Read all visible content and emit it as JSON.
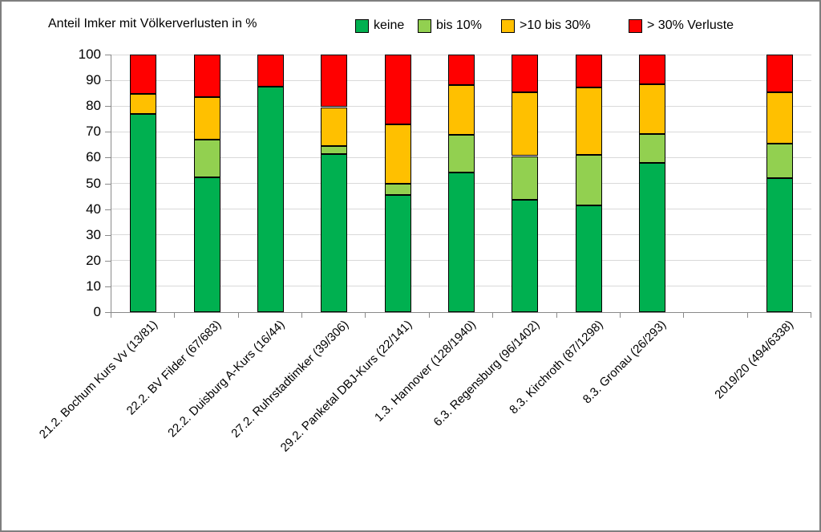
{
  "title": "Anteil Imker mit Völkerverlusten in %",
  "legend": [
    {
      "label": "keine",
      "color": "#00B050"
    },
    {
      "label": "bis 10%",
      "color": "#92D050"
    },
    {
      "label": ">10 bis 30%",
      "color": "#FFC000"
    },
    {
      "label": "> 30% Verluste",
      "color": "#FF0000"
    }
  ],
  "colors": {
    "none": "#00B050",
    "upto10": "#92D050",
    "10to30": "#FFC000",
    "over30": "#FF0000",
    "gridline": "#D9D9D9",
    "axis": "#898989"
  },
  "y_axis": {
    "ticks": [
      0,
      10,
      20,
      30,
      40,
      50,
      60,
      70,
      80,
      90,
      100
    ]
  },
  "chart_data": {
    "type": "bar",
    "stacked": true,
    "title": "Anteil Imker mit Völkerverlusten in %",
    "xlabel": "",
    "ylabel": "",
    "ylim": [
      0,
      100
    ],
    "grid": true,
    "legend_position": "top",
    "categories": [
      "21.2. Bochum Kurs Vv (13/81)",
      "22.2. BV Filder (67/683)",
      "22.2. Duisburg A-Kurs (16/44)",
      "27.2. Ruhrstadtimker (39/306)",
      "29.2. Panketal DBJ-Kurs (22/141)",
      "1.3. Hannover (128/1940)",
      "6.3. Regensburg (96/1402)",
      "8.3. Kirchroth (87/1298)",
      "8.3. Gronau (26/293)",
      "2019/20 (494/6338)"
    ],
    "slots": [
      0,
      1,
      2,
      3,
      4,
      5,
      6,
      7,
      8,
      10
    ],
    "total_slots": 11,
    "series": [
      {
        "name": "keine",
        "color": "#00B050",
        "values": [
          77.0,
          52.2,
          87.5,
          61.5,
          45.4,
          54.3,
          43.7,
          41.4,
          57.9,
          52.0
        ]
      },
      {
        "name": "bis 10%",
        "color": "#92D050",
        "values": [
          0.0,
          14.9,
          0.0,
          3.0,
          4.5,
          14.6,
          16.9,
          19.6,
          11.2,
          13.4
        ]
      },
      {
        "name": ">10 bis 30%",
        "color": "#FFC000",
        "values": [
          7.7,
          16.4,
          0.0,
          15.1,
          22.9,
          19.2,
          24.7,
          26.3,
          19.3,
          20.1
        ]
      },
      {
        "name": "> 30% Verluste",
        "color": "#FF0000",
        "values": [
          15.3,
          16.5,
          12.5,
          20.4,
          27.2,
          11.9,
          14.7,
          12.7,
          11.6,
          14.5
        ]
      }
    ]
  }
}
